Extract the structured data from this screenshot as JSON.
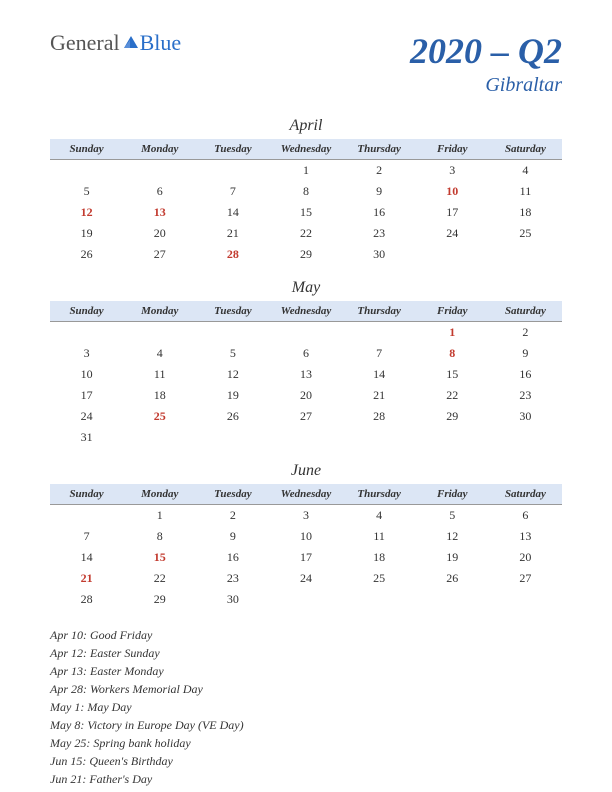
{
  "logo": {
    "part1": "General",
    "part2": "Blue"
  },
  "title": {
    "main": "2020 – Q2",
    "sub": "Gibraltar"
  },
  "day_headers": [
    "Sunday",
    "Monday",
    "Tuesday",
    "Wednesday",
    "Thursday",
    "Friday",
    "Saturday"
  ],
  "colors": {
    "header_bg": "#dce6f5",
    "title_color": "#2a5fa8",
    "holiday_color": "#c23a2e",
    "text_color": "#333333",
    "logo_blue": "#2a6fc9"
  },
  "months": [
    {
      "name": "April",
      "weeks": [
        [
          "",
          "",
          "",
          "1",
          "2",
          "3",
          "4"
        ],
        [
          "5",
          "6",
          "7",
          "8",
          "9",
          "10",
          "11"
        ],
        [
          "12",
          "13",
          "14",
          "15",
          "16",
          "17",
          "18"
        ],
        [
          "19",
          "20",
          "21",
          "22",
          "23",
          "24",
          "25"
        ],
        [
          "26",
          "27",
          "28",
          "29",
          "30",
          "",
          ""
        ]
      ],
      "holidays": [
        "10",
        "12",
        "13",
        "28"
      ]
    },
    {
      "name": "May",
      "weeks": [
        [
          "",
          "",
          "",
          "",
          "",
          "1",
          "2"
        ],
        [
          "3",
          "4",
          "5",
          "6",
          "7",
          "8",
          "9"
        ],
        [
          "10",
          "11",
          "12",
          "13",
          "14",
          "15",
          "16"
        ],
        [
          "17",
          "18",
          "19",
          "20",
          "21",
          "22",
          "23"
        ],
        [
          "24",
          "25",
          "26",
          "27",
          "28",
          "29",
          "30"
        ],
        [
          "31",
          "",
          "",
          "",
          "",
          "",
          ""
        ]
      ],
      "holidays": [
        "1",
        "8",
        "25"
      ]
    },
    {
      "name": "June",
      "weeks": [
        [
          "",
          "1",
          "2",
          "3",
          "4",
          "5",
          "6"
        ],
        [
          "7",
          "8",
          "9",
          "10",
          "11",
          "12",
          "13"
        ],
        [
          "14",
          "15",
          "16",
          "17",
          "18",
          "19",
          "20"
        ],
        [
          "21",
          "22",
          "23",
          "24",
          "25",
          "26",
          "27"
        ],
        [
          "28",
          "29",
          "30",
          "",
          "",
          "",
          ""
        ]
      ],
      "holidays": [
        "15",
        "21"
      ]
    }
  ],
  "holiday_list": [
    "Apr 10: Good Friday",
    "Apr 12: Easter Sunday",
    "Apr 13: Easter Monday",
    "Apr 28: Workers Memorial Day",
    "May 1: May Day",
    "May 8: Victory in Europe Day (VE Day)",
    "May 25: Spring bank holiday",
    "Jun 15: Queen's Birthday",
    "Jun 21: Father's Day"
  ]
}
